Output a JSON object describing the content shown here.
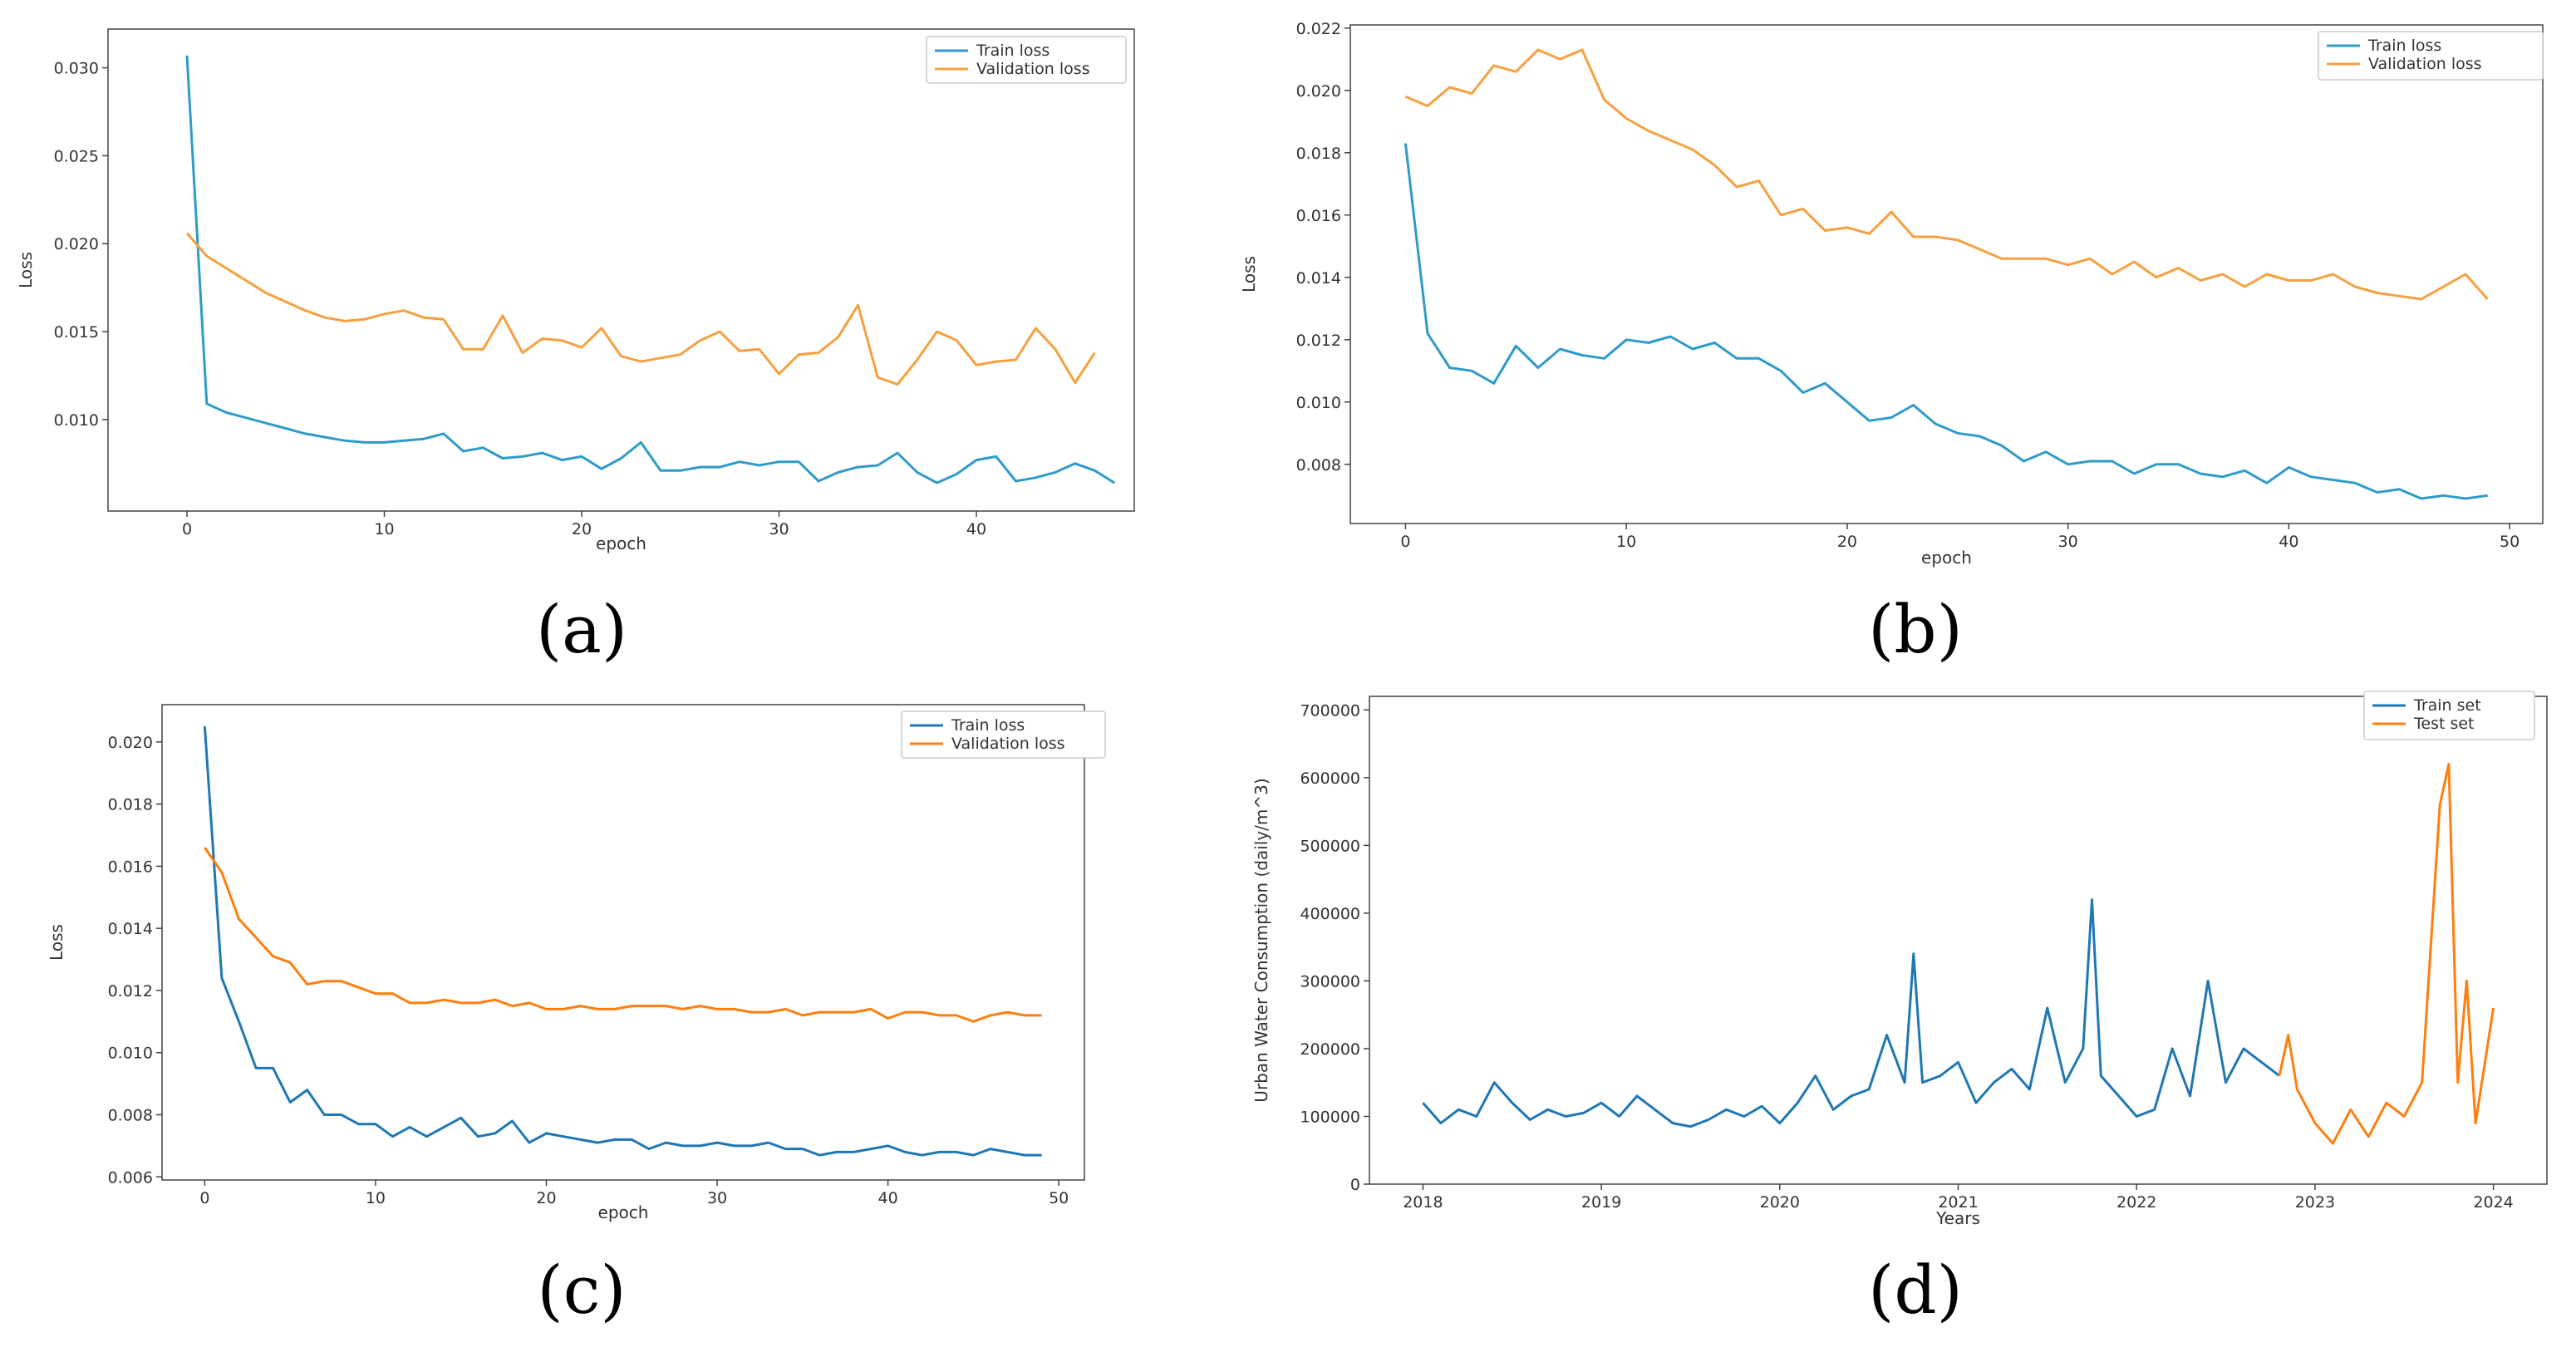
{
  "colors": {
    "train": "#2f9bc9",
    "validation": "#f7a040",
    "train_d": "#1f77b4",
    "test_d": "#ff7f0e"
  },
  "chart_data": [
    {
      "id": "a",
      "caption": "(a)",
      "type": "line",
      "xlabel": "epoch",
      "ylabel": "Loss",
      "xlim": [
        -4,
        48
      ],
      "ylim": [
        0.0048,
        0.0322
      ],
      "xticks": [
        "0",
        "10",
        "20",
        "30",
        "40"
      ],
      "yticks": [
        "0.010",
        "0.015",
        "0.020",
        "0.025",
        "0.030"
      ],
      "legend": "top-right",
      "series": [
        {
          "name": "Train loss",
          "color_key": "train",
          "values": [
            0.0307,
            0.0109,
            0.0104,
            0.0101,
            0.0098,
            0.0095,
            0.0092,
            0.009,
            0.0088,
            0.0087,
            0.0087,
            0.0088,
            0.0089,
            0.0092,
            0.0082,
            0.0084,
            0.0078,
            0.0079,
            0.0081,
            0.0077,
            0.0079,
            0.0072,
            0.0078,
            0.0087,
            0.0071,
            0.0071,
            0.0073,
            0.0073,
            0.0076,
            0.0074,
            0.0076,
            0.0076,
            0.0065,
            0.007,
            0.0073,
            0.0074,
            0.0081,
            0.007,
            0.0064,
            0.0069,
            0.0077,
            0.0079,
            0.0065,
            0.0067,
            0.007,
            0.0075,
            0.0071,
            0.0064
          ]
        },
        {
          "name": "Validation loss",
          "color_key": "validation",
          "values": [
            0.0206,
            0.0193,
            0.0186,
            0.0179,
            0.0172,
            0.0167,
            0.0162,
            0.0158,
            0.0156,
            0.0157,
            0.016,
            0.0162,
            0.0158,
            0.0157,
            0.014,
            0.014,
            0.0159,
            0.0138,
            0.0146,
            0.0145,
            0.0141,
            0.0152,
            0.0136,
            0.0133,
            0.0135,
            0.0137,
            0.0145,
            0.015,
            0.0139,
            0.014,
            0.0126,
            0.0137,
            0.0138,
            0.0147,
            0.0165,
            0.0124,
            0.012,
            0.0134,
            0.015,
            0.0145,
            0.0131,
            0.0133,
            0.0134,
            0.0152,
            0.014,
            0.0121,
            0.0138
          ]
        }
      ]
    },
    {
      "id": "b",
      "caption": "(b)",
      "type": "line",
      "xlabel": "epoch",
      "ylabel": "Loss",
      "xlim": [
        -2.5,
        51.5
      ],
      "ylim": [
        0.0061,
        0.0221
      ],
      "xticks": [
        "0",
        "10",
        "20",
        "30",
        "40",
        "50"
      ],
      "yticks": [
        "0.008",
        "0.010",
        "0.012",
        "0.014",
        "0.016",
        "0.018",
        "0.020",
        "0.022"
      ],
      "legend": "top-right",
      "series": [
        {
          "name": "Train loss",
          "color_key": "train",
          "values": [
            0.0183,
            0.0122,
            0.0111,
            0.011,
            0.0106,
            0.0118,
            0.0111,
            0.0117,
            0.0115,
            0.0114,
            0.012,
            0.0119,
            0.0121,
            0.0117,
            0.0119,
            0.0114,
            0.0114,
            0.011,
            0.0103,
            0.0106,
            0.01,
            0.0094,
            0.0095,
            0.0099,
            0.0093,
            0.009,
            0.0089,
            0.0086,
            0.0081,
            0.0084,
            0.008,
            0.0081,
            0.0081,
            0.0077,
            0.008,
            0.008,
            0.0077,
            0.0076,
            0.0078,
            0.0074,
            0.0079,
            0.0076,
            0.0075,
            0.0074,
            0.0071,
            0.0072,
            0.0069,
            0.007,
            0.0069,
            0.007
          ]
        },
        {
          "name": "Validation loss",
          "color_key": "validation",
          "values": [
            0.0198,
            0.0195,
            0.0201,
            0.0199,
            0.0208,
            0.0206,
            0.0213,
            0.021,
            0.0213,
            0.0197,
            0.0191,
            0.0187,
            0.0184,
            0.0181,
            0.0176,
            0.0169,
            0.0171,
            0.016,
            0.0162,
            0.0155,
            0.0156,
            0.0154,
            0.0161,
            0.0153,
            0.0153,
            0.0152,
            0.0149,
            0.0146,
            0.0146,
            0.0146,
            0.0144,
            0.0146,
            0.0141,
            0.0145,
            0.014,
            0.0143,
            0.0139,
            0.0141,
            0.0137,
            0.0141,
            0.0139,
            0.0139,
            0.0141,
            0.0137,
            0.0135,
            0.0134,
            0.0133,
            0.0137,
            0.0141,
            0.0133
          ]
        }
      ]
    },
    {
      "id": "c",
      "caption": "(c)",
      "type": "line",
      "xlabel": "epoch",
      "ylabel": "Loss",
      "xlim": [
        -2.5,
        51.5
      ],
      "ylim": [
        0.0059,
        0.0212
      ],
      "xticks": [
        "0",
        "10",
        "20",
        "30",
        "40",
        "50"
      ],
      "yticks": [
        "0.006",
        "0.008",
        "0.010",
        "0.012",
        "0.014",
        "0.016",
        "0.018",
        "0.020"
      ],
      "legend": "top-right",
      "series": [
        {
          "name": "Train loss",
          "color_key": "train_d",
          "values": [
            0.0205,
            0.0124,
            0.011,
            0.0095,
            0.0095,
            0.0084,
            0.0088,
            0.008,
            0.008,
            0.0077,
            0.0077,
            0.0073,
            0.0076,
            0.0073,
            0.0076,
            0.0079,
            0.0073,
            0.0074,
            0.0078,
            0.0071,
            0.0074,
            0.0073,
            0.0072,
            0.0071,
            0.0072,
            0.0072,
            0.0069,
            0.0071,
            0.007,
            0.007,
            0.0071,
            0.007,
            0.007,
            0.0071,
            0.0069,
            0.0069,
            0.0067,
            0.0068,
            0.0068,
            0.0069,
            0.007,
            0.0068,
            0.0067,
            0.0068,
            0.0068,
            0.0067,
            0.0069,
            0.0068,
            0.0067,
            0.0067
          ]
        },
        {
          "name": "Validation loss",
          "color_key": "test_d",
          "values": [
            0.0166,
            0.0158,
            0.0143,
            0.0137,
            0.0131,
            0.0129,
            0.0122,
            0.0123,
            0.0123,
            0.0121,
            0.0119,
            0.0119,
            0.0116,
            0.0116,
            0.0117,
            0.0116,
            0.0116,
            0.0117,
            0.0115,
            0.0116,
            0.0114,
            0.0114,
            0.0115,
            0.0114,
            0.0114,
            0.0115,
            0.0115,
            0.0115,
            0.0114,
            0.0115,
            0.0114,
            0.0114,
            0.0113,
            0.0113,
            0.0114,
            0.0112,
            0.0113,
            0.0113,
            0.0113,
            0.0114,
            0.0111,
            0.0113,
            0.0113,
            0.0112,
            0.0112,
            0.011,
            0.0112,
            0.0113,
            0.0112,
            0.0112
          ]
        }
      ]
    },
    {
      "id": "d",
      "caption": "(d)",
      "type": "line",
      "xlabel": "Years",
      "ylabel": "Urban Water Consumption (daily/m^3)",
      "xlim": [
        2017.7,
        2024.3
      ],
      "ylim": [
        0,
        720000
      ],
      "xticks": [
        "2018",
        "2019",
        "2020",
        "2021",
        "2022",
        "2023",
        "2024"
      ],
      "yticks": [
        "0",
        "100000",
        "200000",
        "300000",
        "400000",
        "500000",
        "600000",
        "700000"
      ],
      "legend": "top-right",
      "series": [
        {
          "name": "Train set",
          "color_key": "train_d",
          "x": [
            2018.0,
            2018.1,
            2018.2,
            2018.3,
            2018.4,
            2018.5,
            2018.6,
            2018.7,
            2018.8,
            2018.9,
            2019.0,
            2019.1,
            2019.2,
            2019.3,
            2019.4,
            2019.5,
            2019.6,
            2019.7,
            2019.8,
            2019.9,
            2020.0,
            2020.1,
            2020.2,
            2020.3,
            2020.4,
            2020.5,
            2020.6,
            2020.7,
            2020.75,
            2020.8,
            2020.9,
            2021.0,
            2021.1,
            2021.2,
            2021.3,
            2021.4,
            2021.5,
            2021.6,
            2021.7,
            2021.75,
            2021.8,
            2021.9,
            2022.0,
            2022.1,
            2022.2,
            2022.3,
            2022.4,
            2022.5,
            2022.6,
            2022.7,
            2022.8
          ],
          "y": [
            120000,
            90000,
            110000,
            100000,
            150000,
            120000,
            95000,
            110000,
            100000,
            105000,
            120000,
            100000,
            130000,
            110000,
            90000,
            85000,
            95000,
            110000,
            100000,
            115000,
            90000,
            120000,
            160000,
            110000,
            130000,
            140000,
            220000,
            150000,
            340000,
            150000,
            160000,
            180000,
            120000,
            150000,
            170000,
            140000,
            260000,
            150000,
            200000,
            420000,
            160000,
            130000,
            100000,
            110000,
            200000,
            130000,
            300000,
            150000,
            200000,
            180000,
            160000
          ]
        },
        {
          "name": "Test set",
          "color_key": "test_d",
          "x": [
            2022.8,
            2022.85,
            2022.9,
            2023.0,
            2023.1,
            2023.2,
            2023.3,
            2023.4,
            2023.5,
            2023.6,
            2023.7,
            2023.75,
            2023.8,
            2023.85,
            2023.9,
            2024.0
          ],
          "y": [
            160000,
            220000,
            140000,
            90000,
            60000,
            110000,
            70000,
            120000,
            100000,
            150000,
            560000,
            620000,
            150000,
            300000,
            90000,
            260000
          ]
        }
      ]
    }
  ]
}
